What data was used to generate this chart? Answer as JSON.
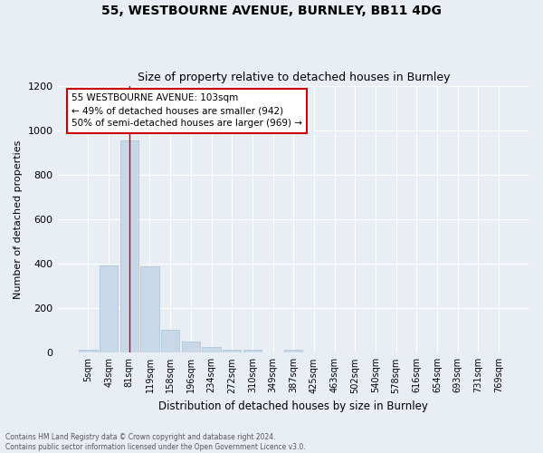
{
  "title_line1": "55, WESTBOURNE AVENUE, BURNLEY, BB11 4DG",
  "title_line2": "Size of property relative to detached houses in Burnley",
  "xlabel": "Distribution of detached houses by size in Burnley",
  "ylabel": "Number of detached properties",
  "categories": [
    "5sqm",
    "43sqm",
    "81sqm",
    "119sqm",
    "158sqm",
    "196sqm",
    "234sqm",
    "272sqm",
    "310sqm",
    "349sqm",
    "387sqm",
    "425sqm",
    "463sqm",
    "502sqm",
    "540sqm",
    "578sqm",
    "616sqm",
    "654sqm",
    "693sqm",
    "731sqm",
    "769sqm"
  ],
  "values": [
    15,
    393,
    955,
    390,
    105,
    52,
    25,
    15,
    12,
    0,
    15,
    0,
    0,
    0,
    0,
    0,
    0,
    0,
    0,
    0,
    0
  ],
  "bar_color": "#c8d8e8",
  "bar_edge_color": "#a8c0d8",
  "red_line_x": 2,
  "annotation_text": "55 WESTBOURNE AVENUE: 103sqm\n← 49% of detached houses are smaller (942)\n50% of semi-detached houses are larger (969) →",
  "annotation_box_color": "#ffffff",
  "annotation_box_edge": "#cc0000",
  "red_line_color": "#cc0000",
  "footer_line1": "Contains HM Land Registry data © Crown copyright and database right 2024.",
  "footer_line2": "Contains public sector information licensed under the Open Government Licence v3.0.",
  "bg_color": "#e8eef4",
  "plot_bg_color": "#e8eef4",
  "grid_color": "#ffffff",
  "ylim": [
    0,
    1200
  ],
  "yticks": [
    0,
    200,
    400,
    600,
    800,
    1000,
    1200
  ]
}
